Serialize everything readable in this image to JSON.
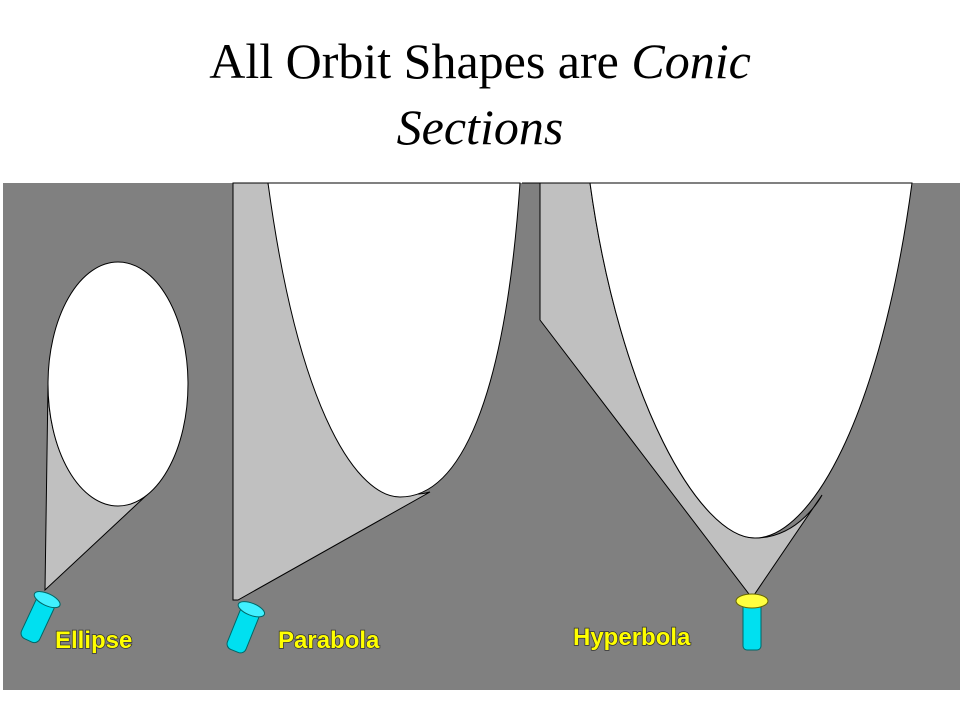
{
  "title": {
    "text": "All Orbit Shapes are",
    "emphasis": "Conic Sections"
  },
  "labels": [
    "Ellipse",
    "Parabola",
    "Hyperbola"
  ]
}
